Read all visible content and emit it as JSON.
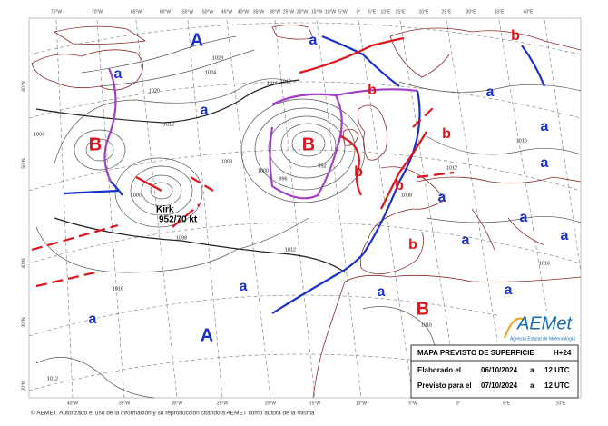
{
  "top_meridians": [
    "75°W",
    "70°W",
    "65°W",
    "60°W",
    "55°W",
    "50°W",
    "45°W",
    "40°W",
    "35°W",
    "30°W",
    "25°W",
    "20°W",
    "15°W",
    "10°W",
    "5°W",
    "0°",
    "5°E",
    "10°E",
    "15°E",
    "20°E",
    "25°E",
    "30°E",
    "35°E",
    "40°E"
  ],
  "bottom_meridians": [
    "40°W",
    "35°W",
    "30°W",
    "25°W",
    "20°W",
    "15°W",
    "10°W",
    "5°W",
    "0°",
    "5°E",
    "10°E"
  ],
  "latitudes": [
    "60°N",
    "50°N",
    "40°N",
    "30°N",
    "20°N"
  ],
  "pressure_centers": [
    "A",
    "a",
    "b",
    "a",
    "a",
    "B",
    "B",
    "b",
    "b",
    "a",
    "a",
    "b",
    "b",
    "a",
    "a",
    "b",
    "a",
    "a",
    "a",
    "a",
    "A",
    "B",
    "a",
    "a",
    "a"
  ],
  "isobar_labels": [
    "1028",
    "1024",
    "1020",
    "1016",
    "1012",
    "1008",
    "1004",
    "1000",
    "996",
    "992",
    "1012",
    "1016",
    "1016",
    "1008",
    "1012",
    "1016",
    "1016",
    "1012",
    "1008",
    "1012",
    "1000"
  ],
  "storm": {
    "name": "Kirk",
    "detail": "952/70 kt"
  },
  "logo": {
    "name": "AEMet",
    "subtitle": "Agencia Estatal de Meteorología"
  },
  "info_box": {
    "title": "MAPA PREVISTO DE SUPERFICIE",
    "forecast": "H+24",
    "rows": [
      [
        "Elaborado el",
        "06/10/2024",
        "a",
        "12 UTC"
      ],
      [
        "Previsto para el",
        "07/10/2024",
        "a",
        "12 UTC"
      ]
    ]
  },
  "footer": "© AEMET. Autorizado el uso de la información y su reproducción citando a AEMET como autora de la misma"
}
